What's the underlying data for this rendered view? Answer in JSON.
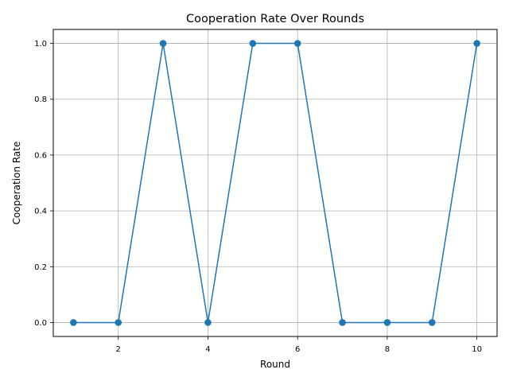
{
  "chart_data": {
    "type": "line",
    "title": "Cooperation Rate Over Rounds",
    "xlabel": "Round",
    "ylabel": "Cooperation Rate",
    "x": [
      1,
      2,
      3,
      4,
      5,
      6,
      7,
      8,
      9,
      10
    ],
    "y": [
      0.0,
      0.0,
      1.0,
      0.0,
      1.0,
      1.0,
      0.0,
      0.0,
      0.0,
      1.0
    ],
    "xlim": [
      0.55,
      10.45
    ],
    "ylim": [
      -0.05,
      1.05
    ],
    "xticks": [
      2,
      4,
      6,
      8,
      10
    ],
    "xtick_labels": [
      "2",
      "4",
      "6",
      "8",
      "10"
    ],
    "yticks": [
      0.0,
      0.2,
      0.4,
      0.6,
      0.8,
      1.0
    ],
    "ytick_labels": [
      "0.0",
      "0.2",
      "0.4",
      "0.6",
      "0.8",
      "1.0"
    ],
    "grid": true,
    "marker": "circle",
    "color": "#1f77b4"
  }
}
